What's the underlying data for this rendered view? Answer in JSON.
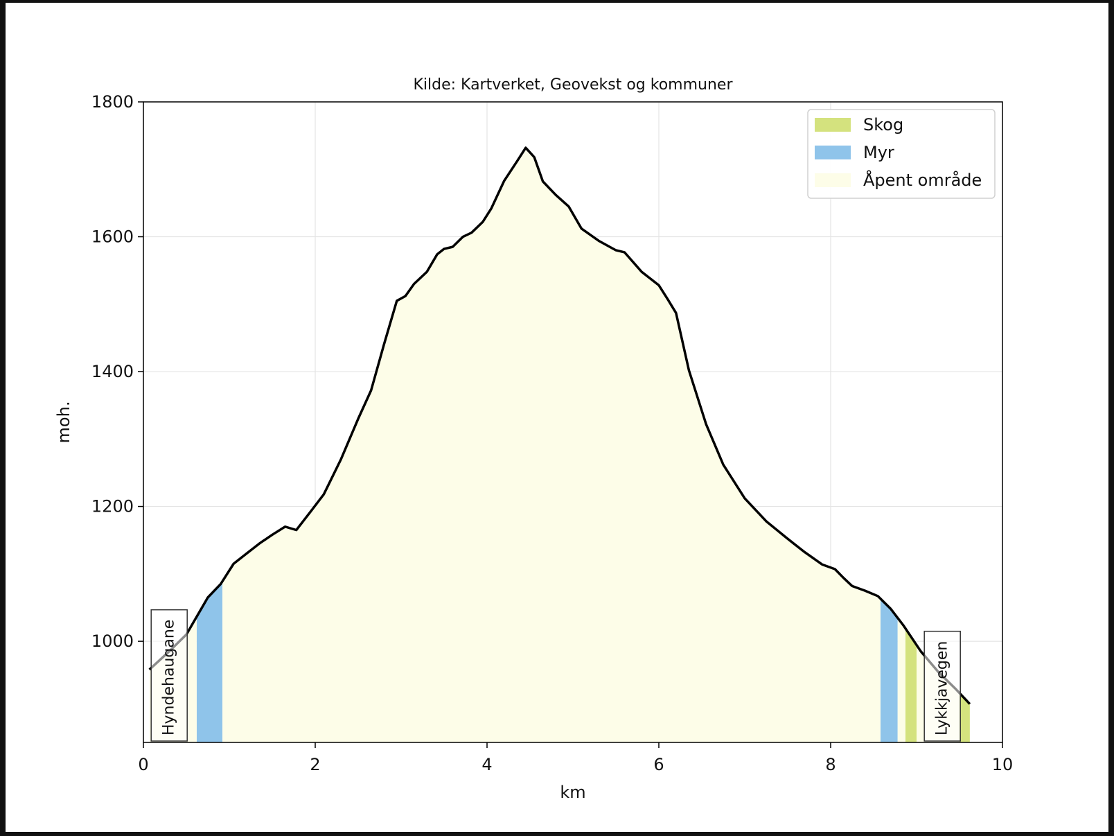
{
  "chart_data": {
    "type": "area",
    "title": "Kilde: Kartverket, Geovekst og kommuner",
    "xlabel": "km",
    "ylabel": "moh.",
    "xlim": [
      0,
      10
    ],
    "ylim": [
      850,
      1800
    ],
    "xticks": [
      0,
      2,
      4,
      6,
      8,
      10
    ],
    "yticks": [
      1000,
      1200,
      1400,
      1600,
      1800
    ],
    "grid": true,
    "legend_position": "top-right",
    "profile": {
      "x": [
        0.07,
        0.3,
        0.5,
        0.75,
        0.9,
        1.05,
        1.2,
        1.35,
        1.5,
        1.65,
        1.78,
        1.95,
        2.1,
        2.3,
        2.5,
        2.65,
        2.8,
        2.95,
        3.05,
        3.15,
        3.3,
        3.42,
        3.5,
        3.6,
        3.72,
        3.82,
        3.95,
        4.05,
        4.2,
        4.35,
        4.45,
        4.55,
        4.65,
        4.8,
        4.95,
        5.1,
        5.3,
        5.5,
        5.6,
        5.8,
        6.0,
        6.1,
        6.2,
        6.35,
        6.55,
        6.75,
        7.0,
        7.25,
        7.5,
        7.7,
        7.9,
        8.05,
        8.15,
        8.25,
        8.4,
        8.55,
        8.7,
        8.85,
        9.05,
        9.25,
        9.45,
        9.62
      ],
      "y": [
        958,
        985,
        1010,
        1065,
        1085,
        1115,
        1130,
        1145,
        1158,
        1170,
        1165,
        1193,
        1218,
        1270,
        1330,
        1372,
        1440,
        1505,
        1512,
        1530,
        1548,
        1574,
        1582,
        1585,
        1600,
        1606,
        1622,
        1642,
        1683,
        1712,
        1732,
        1718,
        1682,
        1662,
        1645,
        1612,
        1594,
        1580,
        1577,
        1548,
        1528,
        1508,
        1487,
        1402,
        1322,
        1262,
        1212,
        1178,
        1152,
        1132,
        1114,
        1107,
        1094,
        1082,
        1075,
        1067,
        1048,
        1023,
        985,
        955,
        930,
        907
      ]
    },
    "landcover": [
      {
        "category": "Skog",
        "color": "#d4e27e",
        "ranges": [
          [
            8.87,
            9.0
          ],
          [
            9.5,
            9.62
          ]
        ]
      },
      {
        "category": "Myr",
        "color": "#8fc4ea",
        "ranges": [
          [
            0.62,
            0.92
          ],
          [
            8.58,
            8.78
          ]
        ]
      },
      {
        "category": "Åpent område",
        "color": "#fdfde8",
        "ranges": [
          [
            0.07,
            0.62
          ],
          [
            0.92,
            8.58
          ],
          [
            8.78,
            8.87
          ],
          [
            9.0,
            9.5
          ]
        ]
      }
    ],
    "legend": [
      {
        "label": "Skog",
        "color": "#d4e27e"
      },
      {
        "label": "Myr",
        "color": "#8fc4ea"
      },
      {
        "label": "Åpent område",
        "color": "#fdfde8"
      }
    ],
    "annotations": [
      {
        "text": "Hyndehaugane",
        "x": 0.3
      },
      {
        "text": "Lykkjavegen",
        "x": 9.3
      }
    ]
  }
}
